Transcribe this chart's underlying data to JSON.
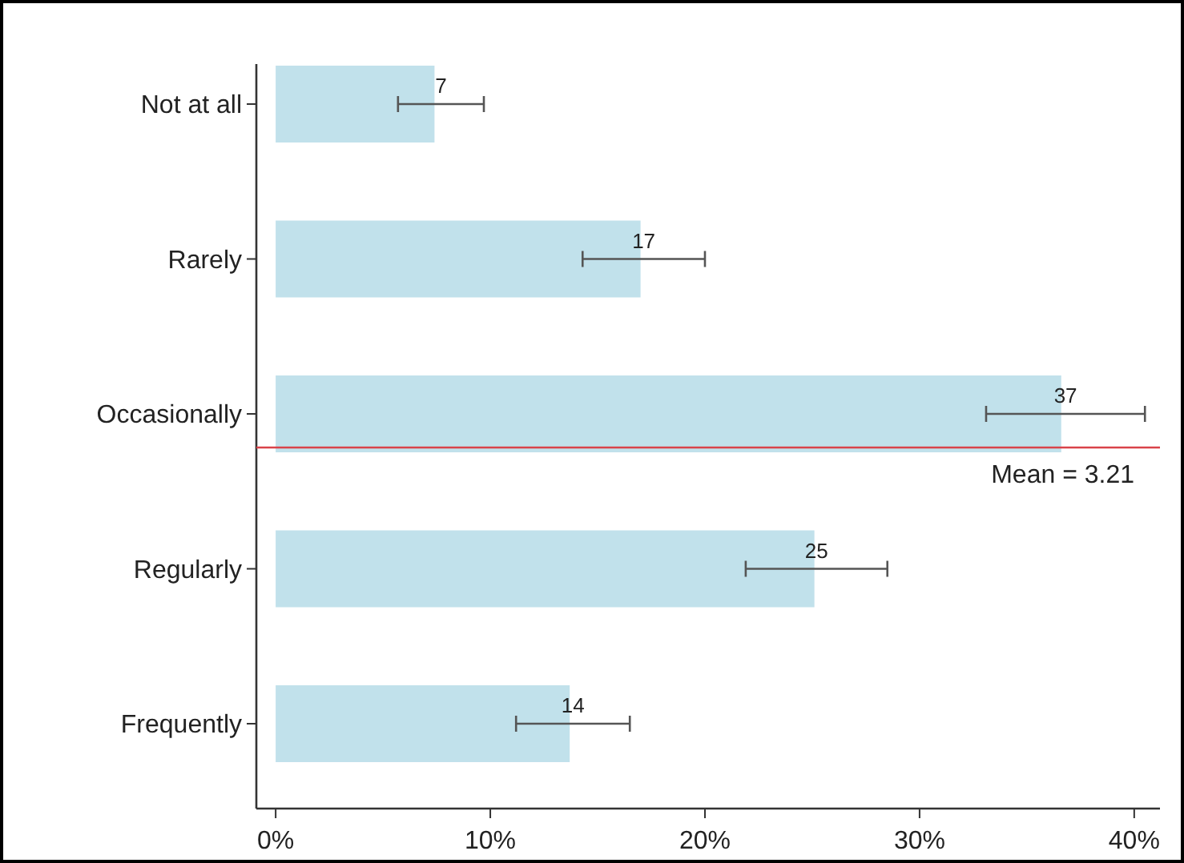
{
  "chart_data": {
    "type": "bar",
    "orientation": "horizontal",
    "categories": [
      "Not at all",
      "Rarely",
      "Occasionally",
      "Regularly",
      "Frequently"
    ],
    "series": [
      {
        "color": "#c1e1eb",
        "values": [
          7.4,
          17,
          36.6,
          25.1,
          13.7
        ],
        "value_labels": [
          "7",
          "17",
          "37",
          "25",
          "14"
        ],
        "errors": [
          [
            5.7,
            9.7
          ],
          [
            14.3,
            20.0
          ],
          [
            33.1,
            40.5
          ],
          [
            21.9,
            28.5
          ],
          [
            11.2,
            16.5
          ]
        ]
      }
    ],
    "xlim": [
      -0.9,
      41.2
    ],
    "xticks": [
      {
        "value": 0,
        "label": "0%"
      },
      {
        "value": 10,
        "label": "10%"
      },
      {
        "value": 20,
        "label": "20%"
      },
      {
        "value": 30,
        "label": "30%"
      },
      {
        "value": 40,
        "label": "40%"
      }
    ],
    "ref_lines": [
      {
        "axis": "y",
        "value": "Occasionally",
        "label": "Mean = 3.21",
        "color": "#d9434a"
      }
    ],
    "grid": false
  }
}
